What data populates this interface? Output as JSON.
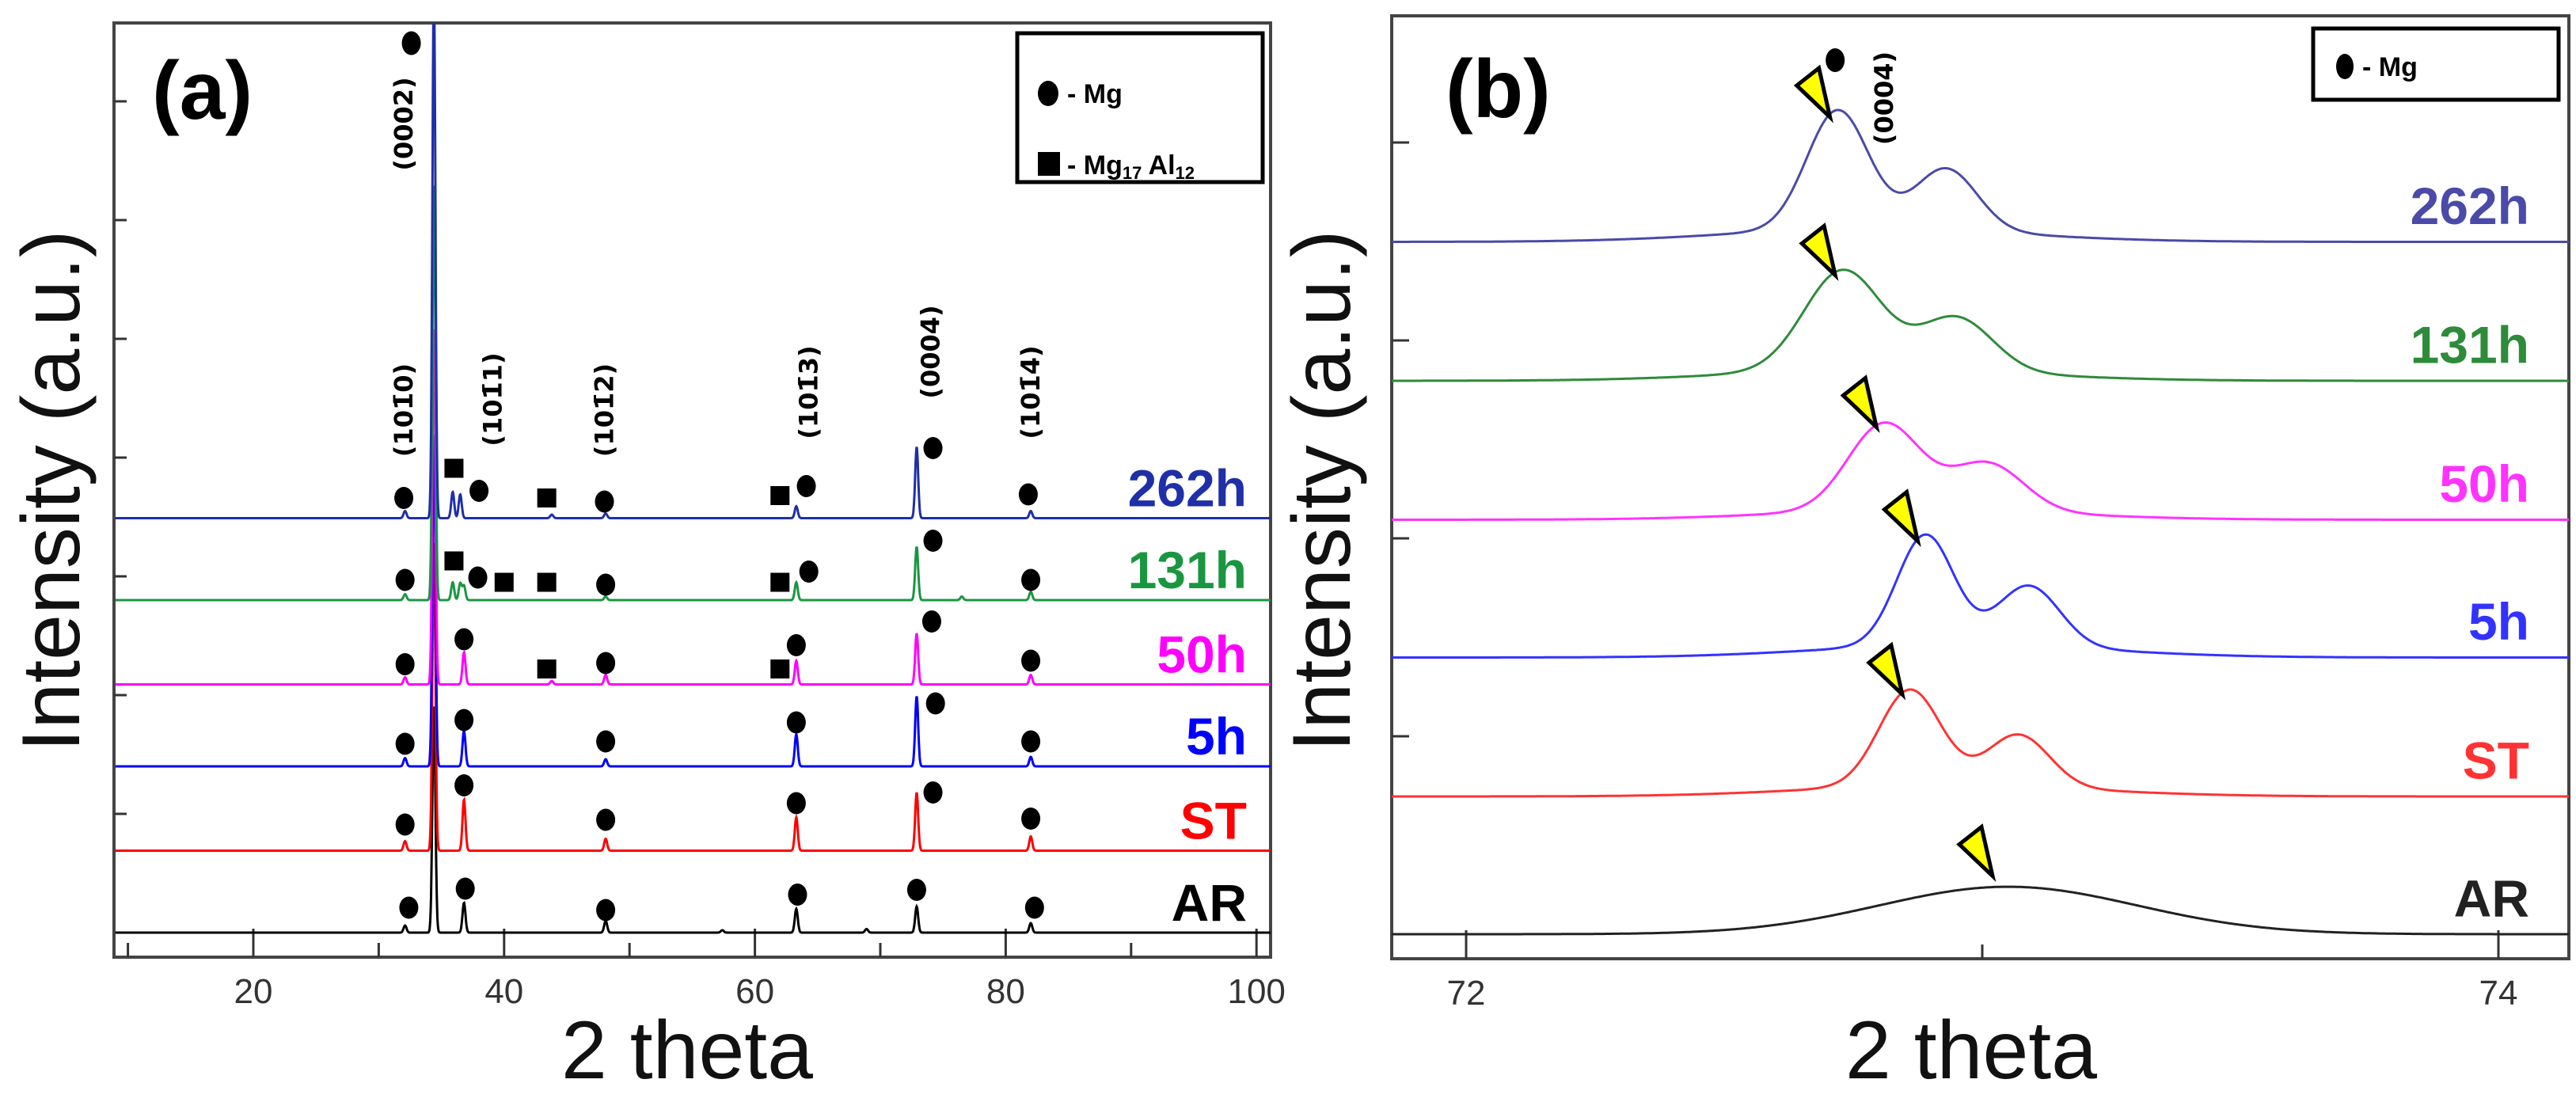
{
  "chart_data": [
    {
      "type": "line",
      "panel_label": "(a)",
      "xlabel": "2 theta",
      "ylabel": "Intensity (a.u.)",
      "xlim": [
        9,
        101.3
      ],
      "ylim": [
        -0.21,
        7.66
      ],
      "xticks": [
        20,
        40,
        60,
        80,
        100
      ],
      "xtick_labels": [
        "20",
        "40",
        "60",
        "80",
        "100"
      ],
      "xminor": [
        10,
        30,
        50,
        70,
        90
      ],
      "yticks": [
        1,
        2,
        3,
        4,
        5,
        6,
        7
      ],
      "grid": false,
      "legend": {
        "position": "top-right",
        "entries": [
          {
            "marker": "circle",
            "text": "- Mg"
          },
          {
            "marker": "square",
            "text": "- Mg",
            "sub1": "17",
            "text2": " Al",
            "sub2": "12"
          }
        ]
      },
      "hkl_labels": [
        {
          "text": "(0002)",
          "x": 32.0,
          "y": 6.81
        },
        {
          "text": "(101̄0)",
          "x": 32.0,
          "y": 4.4
        },
        {
          "text": "(101̄1)",
          "x": 39.1,
          "y": 4.49
        },
        {
          "text": "(101̄2)",
          "x": 48.0,
          "y": 4.4
        },
        {
          "text": "(101̄3)",
          "x": 64.3,
          "y": 4.55
        },
        {
          "text": "(0004)",
          "x": 74.0,
          "y": 4.89
        },
        {
          "text": "(101̄4)",
          "x": 82.0,
          "y": 4.55
        }
      ],
      "extra_markers": [
        {
          "type": "circle",
          "x": 32.6,
          "y": 7.49
        }
      ],
      "series": [
        {
          "name": "AR",
          "color": "#000000",
          "offset": 0,
          "peaks": [
            [
              32.1,
              0.06
            ],
            [
              34.4,
              1.91
            ],
            [
              36.8,
              0.25
            ],
            [
              48.1,
              0.1
            ],
            [
              57.4,
              0.02
            ],
            [
              63.3,
              0.2
            ],
            [
              68.9,
              0.03
            ],
            [
              72.9,
              0.22
            ],
            [
              82.0,
              0.08
            ]
          ],
          "markers": [
            [
              "circle",
              32.4,
              0.21
            ],
            [
              "circle",
              36.9,
              0.37
            ],
            [
              "circle",
              48.1,
              0.19
            ],
            [
              "circle",
              63.4,
              0.32
            ],
            [
              "circle",
              72.9,
              0.36
            ],
            [
              "circle",
              82.3,
              0.21
            ]
          ]
        },
        {
          "name": "ST",
          "color": "#ff0000",
          "offset": 0.69,
          "peaks": [
            [
              32.1,
              0.08
            ],
            [
              34.4,
              2.6
            ],
            [
              36.8,
              0.43
            ],
            [
              48.1,
              0.1
            ],
            [
              63.3,
              0.28
            ],
            [
              72.9,
              0.49
            ],
            [
              82.0,
              0.12
            ]
          ],
          "markers": [
            [
              "circle",
              32.1,
              0.22
            ],
            [
              "circle",
              36.8,
              0.55
            ],
            [
              "circle",
              48.1,
              0.26
            ],
            [
              "circle",
              63.3,
              0.4
            ],
            [
              "circle",
              74.2,
              0.49
            ],
            [
              "circle",
              82.0,
              0.27
            ]
          ]
        },
        {
          "name": "5h",
          "color": "#0000ff",
          "offset": 1.4,
          "peaks": [
            [
              32.1,
              0.07
            ],
            [
              34.4,
              2.8
            ],
            [
              36.8,
              0.3
            ],
            [
              48.1,
              0.06
            ],
            [
              63.3,
              0.27
            ],
            [
              72.9,
              0.59
            ],
            [
              82.0,
              0.08
            ]
          ],
          "markers": [
            [
              "circle",
              32.1,
              0.19
            ],
            [
              "circle",
              36.8,
              0.39
            ],
            [
              "circle",
              48.1,
              0.21
            ],
            [
              "circle",
              63.3,
              0.37
            ],
            [
              "circle",
              74.4,
              0.53
            ],
            [
              "circle",
              82.0,
              0.21
            ]
          ]
        },
        {
          "name": "50h",
          "color": "#ff00ff",
          "offset": 2.09,
          "peaks": [
            [
              32.1,
              0.06
            ],
            [
              34.4,
              3.0
            ],
            [
              36.8,
              0.27
            ],
            [
              43.8,
              0.03
            ],
            [
              48.1,
              0.08
            ],
            [
              63.3,
              0.2
            ],
            [
              72.9,
              0.43
            ],
            [
              82.0,
              0.08
            ]
          ],
          "markers": [
            [
              "circle",
              32.1,
              0.17
            ],
            [
              "circle",
              36.8,
              0.38
            ],
            [
              "square",
              43.4,
              0.13
            ],
            [
              "circle",
              48.1,
              0.18
            ],
            [
              "square",
              62.0,
              0.13
            ],
            [
              "circle",
              63.3,
              0.33
            ],
            [
              "circle",
              74.1,
              0.53
            ],
            [
              "circle",
              82.0,
              0.2
            ]
          ]
        },
        {
          "name": "131h",
          "color": "#1a9641",
          "offset": 2.8,
          "peaks": [
            [
              32.1,
              0.05
            ],
            [
              34.4,
              3.5
            ],
            [
              35.9,
              0.15
            ],
            [
              36.5,
              0.14
            ],
            [
              36.8,
              0.12
            ],
            [
              48.1,
              0.03
            ],
            [
              63.3,
              0.15
            ],
            [
              72.9,
              0.45
            ],
            [
              76.5,
              0.03
            ],
            [
              82.0,
              0.07
            ]
          ],
          "markers": [
            [
              "circle",
              32.1,
              0.17
            ],
            [
              "square",
              36.0,
              0.33
            ],
            [
              "circle",
              37.9,
              0.19
            ],
            [
              "square",
              40.0,
              0.15
            ],
            [
              "square",
              43.4,
              0.15
            ],
            [
              "circle",
              48.1,
              0.13
            ],
            [
              "square",
              62.0,
              0.15
            ],
            [
              "circle",
              64.3,
              0.24
            ],
            [
              "circle",
              74.2,
              0.5
            ],
            [
              "circle",
              82.0,
              0.17
            ]
          ]
        },
        {
          "name": "262h",
          "color": "#1f2fa8",
          "offset": 3.49,
          "peaks": [
            [
              32.1,
              0.06
            ],
            [
              34.4,
              4.5
            ],
            [
              35.9,
              0.22
            ],
            [
              36.5,
              0.2
            ],
            [
              43.8,
              0.03
            ],
            [
              48.1,
              0.04
            ],
            [
              63.3,
              0.1
            ],
            [
              72.9,
              0.6
            ],
            [
              82.0,
              0.06
            ]
          ],
          "markers": [
            [
              "circle",
              32.0,
              0.17
            ],
            [
              "square",
              36.0,
              0.42
            ],
            [
              "circle",
              38.0,
              0.23
            ],
            [
              "square",
              43.4,
              0.17
            ],
            [
              "circle",
              48.0,
              0.14
            ],
            [
              "square",
              62.0,
              0.19
            ],
            [
              "circle",
              64.1,
              0.27
            ],
            [
              "circle",
              74.2,
              0.59
            ],
            [
              "circle",
              81.8,
              0.2
            ]
          ]
        }
      ]
    },
    {
      "type": "line",
      "panel_label": "(b)",
      "xlabel": "2 theta",
      "ylabel": "Intensity (a.u.)",
      "xlim": [
        71.856,
        74.14
      ],
      "ylim": [
        -0.21,
        7.73
      ],
      "xticks": [
        72,
        74
      ],
      "xtick_labels": [
        "72",
        "74"
      ],
      "xminor": [
        73
      ],
      "yticks": [
        0,
        1.667,
        3.333,
        5,
        6.667
      ],
      "grid": false,
      "legend": {
        "position": "top-right",
        "entries": [
          {
            "marker": "circle",
            "text": "- Mg"
          }
        ]
      },
      "hkl_labels": [
        {
          "text": "(0004)",
          "x": 72.81,
          "y": 7.04
        }
      ],
      "extra_markers": [
        {
          "type": "circle",
          "x": 72.715,
          "y": 7.36
        }
      ],
      "series": [
        {
          "name": "AR",
          "color": "#222222",
          "offset": 0,
          "peaks": [
            [
              73.05,
              0.37,
              0.25
            ]
          ]
        },
        {
          "name": "ST",
          "color": "#ff3333",
          "offset": 1.16,
          "peaks": [
            [
              72.86,
              0.81,
              0.06
            ],
            [
              73.07,
              0.44,
              0.06
            ]
          ]
        },
        {
          "name": "5h",
          "color": "#3333ff",
          "offset": 2.33,
          "peaks": [
            [
              72.89,
              0.93,
              0.055
            ],
            [
              73.09,
              0.51,
              0.06
            ]
          ]
        },
        {
          "name": "50h",
          "color": "#ff33ff",
          "offset": 3.49,
          "peaks": [
            [
              72.81,
              0.73,
              0.07
            ],
            [
              73.01,
              0.4,
              0.07
            ]
          ]
        },
        {
          "name": "131h",
          "color": "#2e8b3a",
          "offset": 4.66,
          "peaks": [
            [
              72.73,
              0.84,
              0.075
            ],
            [
              72.95,
              0.45,
              0.07
            ]
          ]
        },
        {
          "name": "262h",
          "color": "#4a4aa8",
          "offset": 5.83,
          "peaks": [
            [
              72.72,
              1.0,
              0.06
            ],
            [
              72.93,
              0.52,
              0.06
            ]
          ]
        }
      ],
      "peak_shift_markers": {
        "type": "yellow-triangle",
        "color": "#ffff00"
      }
    }
  ]
}
